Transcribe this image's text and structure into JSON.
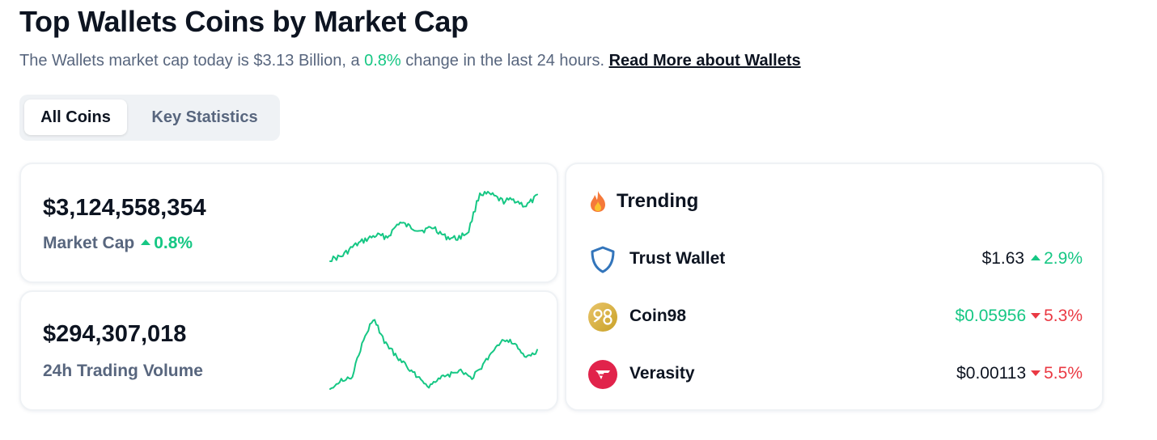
{
  "page": {
    "title": "Top Wallets Coins by Market Cap",
    "subtitle_prefix": "The Wallets market cap today is $3.13 Billion, a ",
    "subtitle_change": "0.8%",
    "subtitle_suffix": " change in the last 24 hours. ",
    "read_more": "Read More about Wallets"
  },
  "tabs": [
    {
      "label": "All Coins",
      "active": true
    },
    {
      "label": "Key Statistics",
      "active": false
    }
  ],
  "market_cap": {
    "value": "$3,124,558,354",
    "label": "Market Cap",
    "change": "0.8%",
    "direction": "up"
  },
  "volume": {
    "value": "$294,307,018",
    "label": "24h Trading Volume"
  },
  "trending": {
    "label": "Trending",
    "icon": "fire-icon",
    "items": [
      {
        "name": "Trust Wallet",
        "icon": "shield-icon",
        "price": "$1.63",
        "price_color": "#0d1421",
        "change": "2.9%",
        "direction": "up"
      },
      {
        "name": "Coin98",
        "icon": "coin98-logo-icon",
        "price": "$0.05956",
        "price_color": "#16c784",
        "change": "5.3%",
        "direction": "down"
      },
      {
        "name": "Verasity",
        "icon": "verasity-logo-icon",
        "price": "$0.00113",
        "price_color": "#0d1421",
        "change": "5.5%",
        "direction": "down"
      }
    ]
  },
  "colors": {
    "positive": "#16c784",
    "negative": "#ea3943",
    "text_primary": "#0d1421",
    "text_secondary": "#58667e",
    "tab_background": "#eff2f5"
  }
}
